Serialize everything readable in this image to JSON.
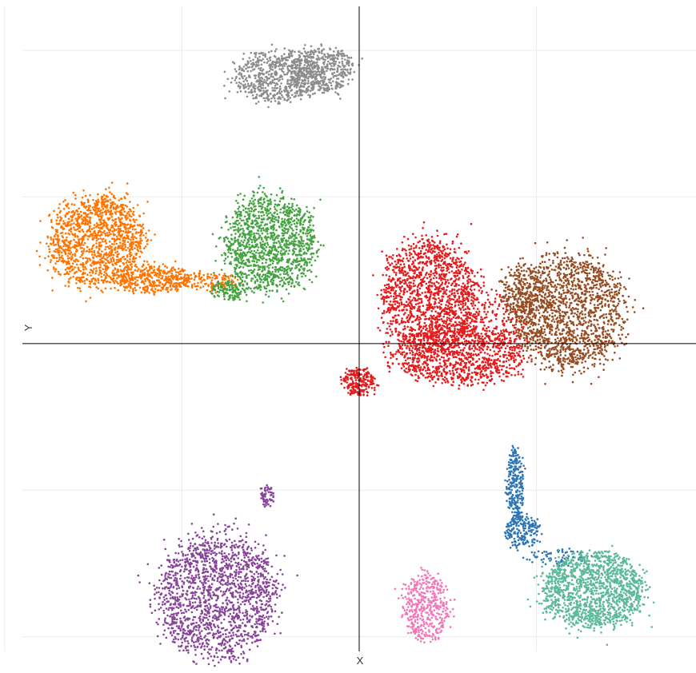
{
  "chart_data": {
    "type": "scatter",
    "title": "",
    "xlabel": "X",
    "ylabel": "Y",
    "xlim": [
      -9.5,
      9.5
    ],
    "ylim": [
      -10.5,
      11.5
    ],
    "grid": true,
    "zero_lines": true,
    "legend": "none",
    "series": [
      {
        "color": "#8c8c8c",
        "blobs": [
          {
            "cx": -2.3,
            "cy": 9.1,
            "rx": 1.2,
            "ry": 0.9,
            "n": 650
          },
          {
            "cx": -1.0,
            "cy": 9.35,
            "rx": 0.9,
            "ry": 0.8,
            "n": 450
          }
        ]
      },
      {
        "color": "#ff7400",
        "blobs": [
          {
            "cx": -7.4,
            "cy": 3.5,
            "rx": 1.4,
            "ry": 1.6,
            "n": 1300
          },
          {
            "cx": -5.8,
            "cy": 2.2,
            "rx": 1.1,
            "ry": 0.5,
            "n": 380
          },
          {
            "cx": -4.2,
            "cy": 2.1,
            "rx": 0.9,
            "ry": 0.3,
            "n": 120
          }
        ]
      },
      {
        "color": "#44a340",
        "blobs": [
          {
            "cx": -2.5,
            "cy": 3.4,
            "rx": 1.3,
            "ry": 1.7,
            "n": 1300
          },
          {
            "cx": -3.7,
            "cy": 1.8,
            "rx": 0.6,
            "ry": 0.35,
            "n": 140
          }
        ]
      },
      {
        "color": "#e41b1c",
        "blobs": [
          {
            "cx": 2.0,
            "cy": 1.6,
            "rx": 1.4,
            "ry": 2.0,
            "n": 1500
          },
          {
            "cx": 2.8,
            "cy": -0.4,
            "rx": 2.0,
            "ry": 1.0,
            "n": 1000
          },
          {
            "cx": 0.0,
            "cy": -1.3,
            "rx": 0.5,
            "ry": 0.5,
            "n": 220
          },
          {
            "cx": 3.7,
            "cy": 0.7,
            "rx": 1.0,
            "ry": 1.0,
            "n": 200
          }
        ]
      },
      {
        "color": "#974b21",
        "blobs": [
          {
            "cx": 5.9,
            "cy": 1.1,
            "rx": 1.6,
            "ry": 2.0,
            "n": 1600
          },
          {
            "cx": 4.6,
            "cy": 1.8,
            "rx": 0.6,
            "ry": 1.0,
            "n": 220
          }
        ]
      },
      {
        "color": "#2e75b5",
        "blobs": [
          {
            "cx": 4.4,
            "cy": -4.8,
            "rx": 0.25,
            "ry": 1.3,
            "n": 260
          },
          {
            "cx": 4.6,
            "cy": -6.4,
            "rx": 0.5,
            "ry": 0.6,
            "n": 200
          },
          {
            "cx": 5.6,
            "cy": -7.3,
            "rx": 1.0,
            "ry": 0.3,
            "n": 70
          }
        ]
      },
      {
        "color": "#5bb997",
        "blobs": [
          {
            "cx": 6.6,
            "cy": -8.4,
            "rx": 1.5,
            "ry": 1.3,
            "n": 1400
          }
        ]
      },
      {
        "color": "#f475b7",
        "blobs": [
          {
            "cx": 1.9,
            "cy": -9.0,
            "rx": 0.65,
            "ry": 1.2,
            "n": 420
          }
        ]
      },
      {
        "color": "#874598",
        "blobs": [
          {
            "cx": -4.0,
            "cy": -8.6,
            "rx": 1.7,
            "ry": 2.2,
            "n": 1700
          },
          {
            "cx": -2.6,
            "cy": -5.2,
            "rx": 0.18,
            "ry": 0.35,
            "n": 60
          }
        ]
      }
    ]
  }
}
